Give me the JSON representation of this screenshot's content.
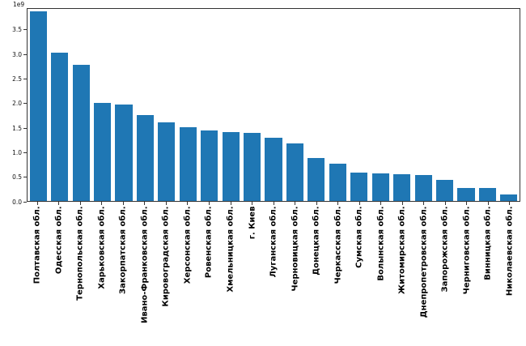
{
  "chart_data": {
    "type": "bar",
    "title": "",
    "xlabel": "",
    "ylabel": "",
    "offset_label": "1e9",
    "unit_multiplier": 1000000000,
    "ylim": [
      0,
      3.94
    ],
    "grid": false,
    "legend": false,
    "bar_color": "#1f77b4",
    "axis_color": "#333333",
    "ytick_labels": [
      "0.0",
      "0.5",
      "1.0",
      "1.5",
      "2.0",
      "2.5",
      "3.0",
      "3.5"
    ],
    "ytick_values": [
      0.0,
      0.5,
      1.0,
      1.5,
      2.0,
      2.5,
      3.0,
      3.5
    ],
    "categories": [
      "Полтавская обл.",
      "Одесская обл.",
      "Тернопольская обл.",
      "Харьковская обл.",
      "Закорпатская обл.",
      "Ивано-Франковская обл.",
      "Кировоградская обл.",
      "Херсонская обл.",
      "Ровенская обл.",
      "Хмельницкая обл.",
      "г. Киев",
      "Луганская обл.",
      "Черновицкая обл.",
      "Донецкая обл.",
      "Черкасская обл.",
      "Сумская обл.",
      "Волынская обл.",
      "Житомирская обл.",
      "Днепропетровская обл.",
      "Запорожская обл.",
      "Черниговская обл.",
      "Винницкая обл.",
      "Николаевская обл."
    ],
    "values_e9": [
      3.89,
      3.04,
      2.79,
      2.02,
      1.98,
      1.77,
      1.62,
      1.51,
      1.44,
      1.42,
      1.39,
      1.3,
      1.18,
      0.88,
      0.76,
      0.59,
      0.57,
      0.55,
      0.54,
      0.44,
      0.27,
      0.26,
      0.13
    ],
    "values": [
      3890000000,
      3040000000,
      2790000000,
      2020000000,
      1980000000,
      1770000000,
      1620000000,
      1510000000,
      1440000000,
      1420000000,
      1390000000,
      1300000000,
      1180000000,
      880000000,
      760000000,
      590000000,
      570000000,
      550000000,
      540000000,
      440000000,
      270000000,
      260000000,
      130000000
    ]
  }
}
